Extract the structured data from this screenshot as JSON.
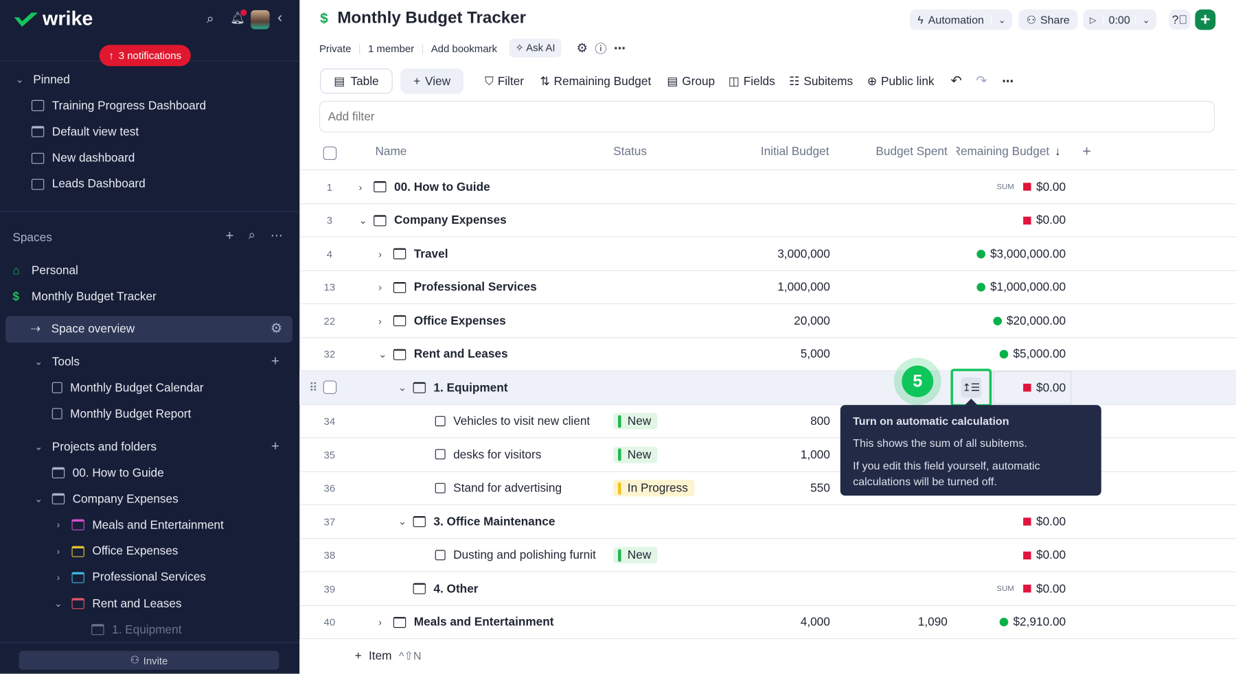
{
  "sidebar": {
    "brand": "wrike",
    "notifications_label": "3 notifications",
    "pinned_label": "Pinned",
    "pinned": [
      {
        "label": "Training Progress Dashboard",
        "icon": "dashboard"
      },
      {
        "label": "Default view test",
        "icon": "folder"
      },
      {
        "label": "New dashboard",
        "icon": "dashboard"
      },
      {
        "label": "Leads Dashboard",
        "icon": "dashboard"
      }
    ],
    "spaces_label": "Spaces",
    "spaces": [
      {
        "label": "Personal",
        "icon": "home"
      },
      {
        "label": "Monthly Budget Tracker",
        "icon": "dollar"
      }
    ],
    "space_overview": "Space overview",
    "tools_label": "Tools",
    "tools": [
      "Monthly Budget Calendar",
      "Monthly Budget Report"
    ],
    "projects_label": "Projects and folders",
    "projects": [
      {
        "label": "00. How to Guide",
        "level": 0,
        "chev": "",
        "color": "#aab2c6"
      },
      {
        "label": "Company Expenses",
        "level": 0,
        "chev": "down",
        "color": "#aab2c6"
      },
      {
        "label": "Meals and Entertainment",
        "level": 1,
        "chev": "right",
        "color": "#d04fc9"
      },
      {
        "label": "Office Expenses",
        "level": 1,
        "chev": "right",
        "color": "#e5c233"
      },
      {
        "label": "Professional Services",
        "level": 1,
        "chev": "right",
        "color": "#3fb6e0"
      },
      {
        "label": "Rent and Leases",
        "level": 1,
        "chev": "down",
        "color": "#e0556a"
      },
      {
        "label": "1. Equipment",
        "level": 2,
        "chev": "",
        "color": "#6b7489"
      }
    ],
    "invite_label": "Invite"
  },
  "header": {
    "title": "Monthly Budget Tracker",
    "privacy": "Private",
    "members": "1 member",
    "bookmark": "Add bookmark",
    "ask_ai": "Ask AI",
    "automation": "Automation",
    "share": "Share",
    "timer": "0:00"
  },
  "toolbar": {
    "table": "Table",
    "view": "View",
    "filter": "Filter",
    "sort": "Remaining Budget",
    "group": "Group",
    "fields": "Fields",
    "subitems": "Subitems",
    "public_link": "Public link"
  },
  "filter_placeholder": "Add filter",
  "columns": {
    "name": "Name",
    "status": "Status",
    "initial": "Initial Budget",
    "spent": "Budget Spent",
    "remaining": "Remaining Budget"
  },
  "colors": {
    "red": "#e0143c",
    "green": "#0ab14b",
    "accent": "#0f8a4f"
  },
  "rows": [
    {
      "num": "1",
      "name": "00. How to Guide",
      "level": 0,
      "kind": "folder",
      "chev": "right",
      "remaining": "$0.00",
      "ind": "red",
      "sum": "SUM"
    },
    {
      "num": "3",
      "name": "Company Expenses",
      "level": 0,
      "kind": "folder",
      "chev": "down",
      "remaining": "$0.00",
      "ind": "red"
    },
    {
      "num": "4",
      "name": "Travel",
      "level": 1,
      "kind": "folder",
      "chev": "right",
      "initial": "3,000,000",
      "remaining": "$3,000,000.00",
      "ind": "green"
    },
    {
      "num": "13",
      "name": "Professional Services",
      "level": 1,
      "kind": "folder",
      "chev": "right",
      "initial": "1,000,000",
      "remaining": "$1,000,000.00",
      "ind": "green"
    },
    {
      "num": "22",
      "name": "Office Expenses",
      "level": 1,
      "kind": "folder",
      "chev": "right",
      "initial": "20,000",
      "remaining": "$20,000.00",
      "ind": "green"
    },
    {
      "num": "32",
      "name": "Rent and Leases",
      "level": 1,
      "kind": "folder",
      "chev": "down",
      "initial": "5,000",
      "remaining": "$5,000.00",
      "ind": "green"
    },
    {
      "num": "",
      "name": "1. Equipment",
      "level": 2,
      "kind": "folder",
      "chev": "down",
      "remaining": "$0.00",
      "ind": "red",
      "hover": true
    },
    {
      "num": "34",
      "name": "Vehicles to visit new client",
      "level": 3,
      "kind": "task",
      "status": "New",
      "initial": "800"
    },
    {
      "num": "35",
      "name": "desks for visitors",
      "level": 3,
      "kind": "task",
      "status": "New",
      "initial": "1,000"
    },
    {
      "num": "36",
      "name": "Stand for advertising",
      "level": 3,
      "kind": "task",
      "status": "In Progress",
      "initial": "550"
    },
    {
      "num": "37",
      "name": "3. Office Maintenance",
      "level": 2,
      "kind": "folder",
      "chev": "down",
      "remaining": "$0.00",
      "ind": "red"
    },
    {
      "num": "38",
      "name": "Dusting and polishing furnit",
      "level": 3,
      "kind": "task",
      "status": "New",
      "remaining": "$0.00",
      "ind": "red"
    },
    {
      "num": "39",
      "name": "4. Other",
      "level": 2,
      "kind": "folder",
      "chev": "",
      "remaining": "$0.00",
      "ind": "red",
      "sum": "SUM"
    },
    {
      "num": "40",
      "name": "Meals and Entertainment",
      "level": 1,
      "kind": "folder",
      "chev": "right",
      "initial": "4,000",
      "spent": "1,090",
      "remaining": "$2,910.00",
      "ind": "green"
    }
  ],
  "add_item": {
    "label": "Item",
    "shortcut": "^⇧N"
  },
  "tooltip": {
    "title": "Turn on automatic calculation",
    "line1": "This shows the sum of all subitems.",
    "line2": "If you edit this field yourself, automatic calculations will be turned off."
  },
  "step_badge": "5"
}
